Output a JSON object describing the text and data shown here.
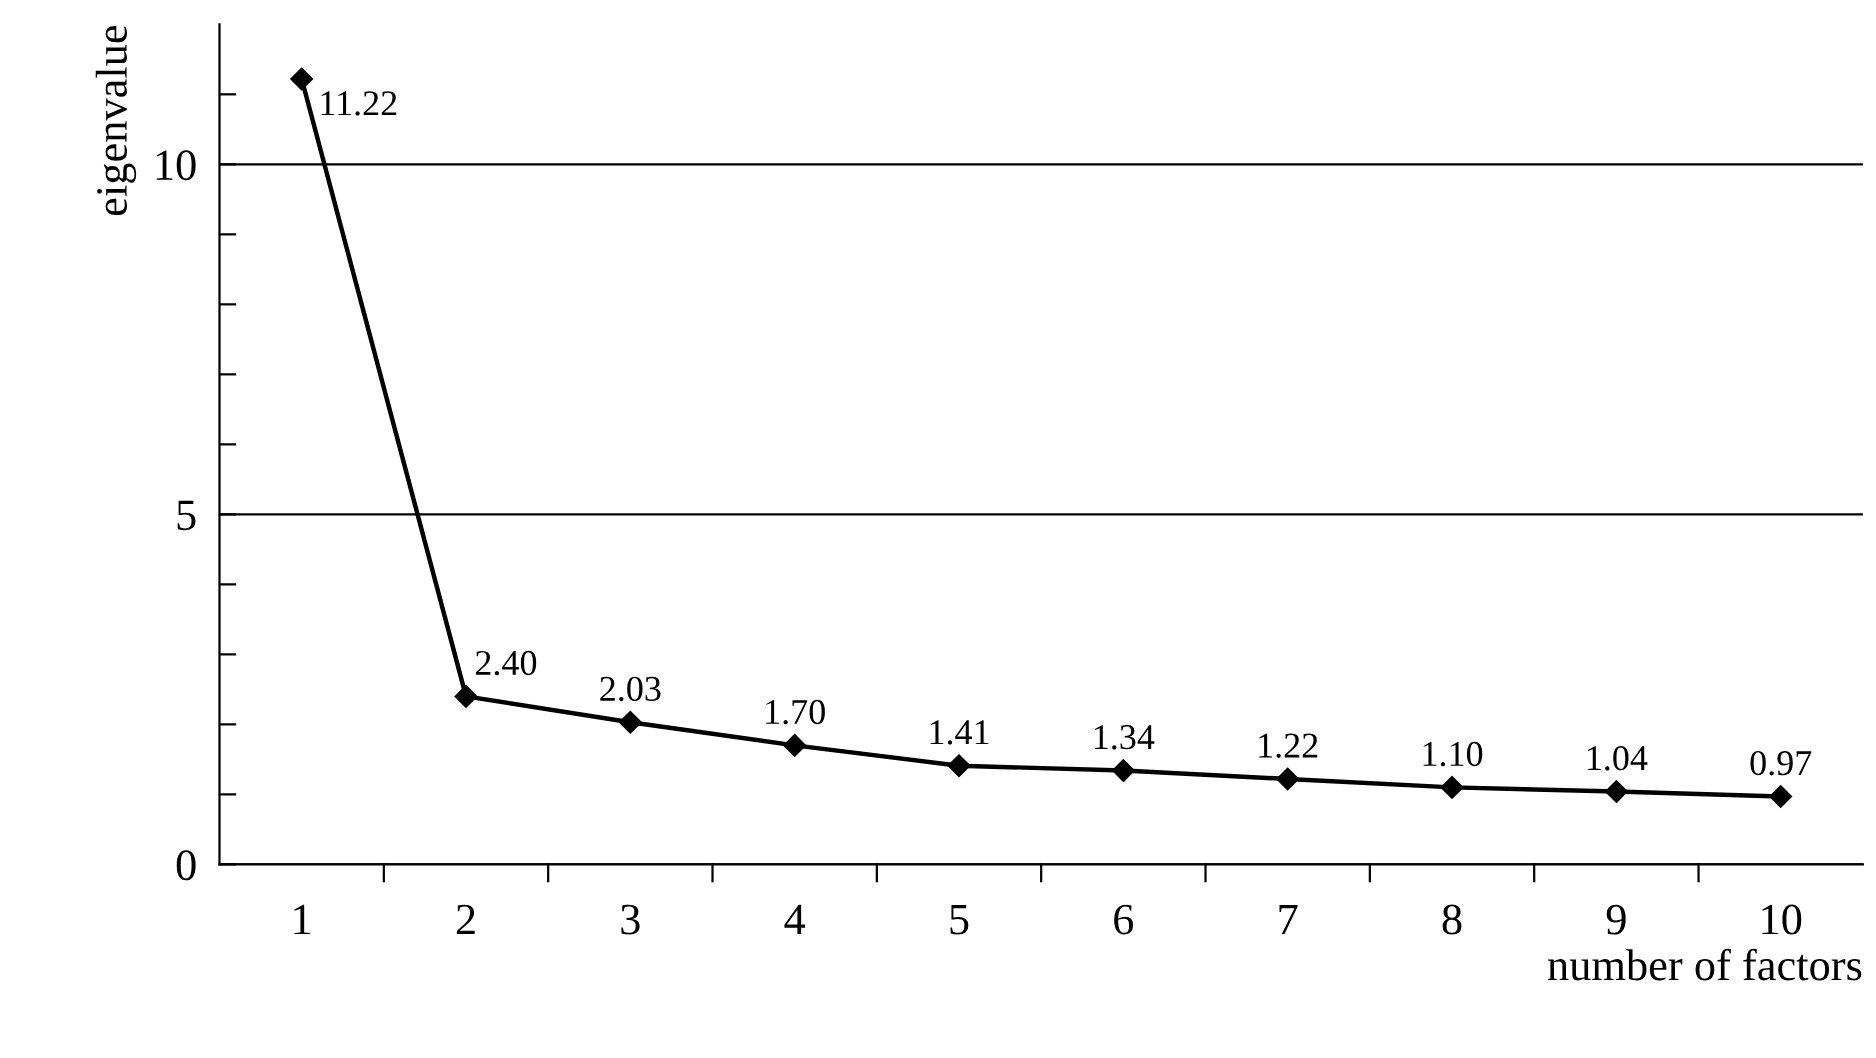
{
  "chart_data": {
    "type": "line",
    "xlabel": "number of factors",
    "ylabel": "eigenvalue",
    "categories": [
      "1",
      "2",
      "3",
      "4",
      "5",
      "6",
      "7",
      "8",
      "9",
      "10"
    ],
    "series": [
      {
        "color": "#000000",
        "values": [
          11.22,
          2.4,
          2.03,
          1.7,
          1.41,
          1.34,
          1.22,
          1.1,
          1.04,
          0.97
        ],
        "value_labels": [
          "11.22",
          "2.40",
          "2.03",
          "1.70",
          "1.41",
          "1.34",
          "1.22",
          "1.10",
          "1.04",
          "0.97"
        ]
      }
    ],
    "ylim": [
      0,
      12
    ],
    "yticks": [
      0,
      {
        "value": 1,
        "label": null
      },
      {
        "value": 2,
        "label": null
      },
      {
        "value": 3,
        "label": null
      },
      {
        "value": 4,
        "label": null
      },
      5,
      {
        "value": 6,
        "label": null
      },
      {
        "value": 7,
        "label": null
      },
      {
        "value": 8,
        "label": null
      },
      {
        "value": 9,
        "label": null
      },
      10,
      {
        "value": 11,
        "label": null
      }
    ],
    "grid": "y",
    "marker": "diamond",
    "line_style": "solid"
  }
}
